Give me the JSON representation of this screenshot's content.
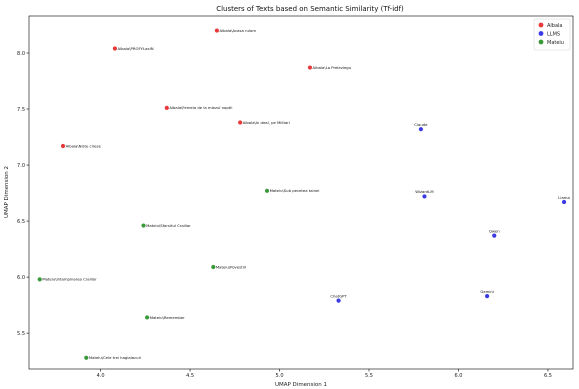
{
  "chart_data": {
    "type": "scatter",
    "title": "Clusters of Texts based on Semantic Similarity (Tf-idf)",
    "xlabel": "UMAP Dimension 1",
    "ylabel": "UMAP Dimension 2",
    "xlim": [
      3.6,
      6.64
    ],
    "ylim": [
      5.18,
      8.33
    ],
    "xticks": [
      "4.0",
      "4.5",
      "5.0",
      "5.5",
      "6.0",
      "6.5"
    ],
    "yticks": [
      "5.5",
      "6.0",
      "6.5",
      "7.0",
      "7.5",
      "8.0"
    ],
    "grid": false,
    "legend_position": "top-right",
    "series": [
      {
        "name": "Albala",
        "color": "#e8393b",
        "points": [
          {
            "x": 4.65,
            "y": 8.2,
            "label": "Albala\\Acasa rulom"
          },
          {
            "x": 4.08,
            "y": 8.04,
            "label": "Albala\\PROFYLaxiN"
          },
          {
            "x": 5.17,
            "y": 7.87,
            "label": "Albala\\La Prelevlegu"
          },
          {
            "x": 4.37,
            "y": 7.51,
            "label": "Albala\\Femeia de la miezul noptii"
          },
          {
            "x": 4.78,
            "y": 7.38,
            "label": "Albala\\In deal, pe Militari"
          },
          {
            "x": 3.79,
            "y": 7.17,
            "label": "Albala\\Niste cirese"
          }
        ]
      },
      {
        "name": "LLMS",
        "color": "#3a3ae6",
        "points": [
          {
            "x": 5.79,
            "y": 7.32,
            "label": "Claude"
          },
          {
            "x": 5.81,
            "y": 6.72,
            "label": "WizardLM"
          },
          {
            "x": 6.59,
            "y": 6.67,
            "label": "Llama"
          },
          {
            "x": 6.2,
            "y": 6.37,
            "label": "Qwen"
          },
          {
            "x": 6.16,
            "y": 5.83,
            "label": "Gemini"
          },
          {
            "x": 5.33,
            "y": 5.79,
            "label": "ChatGPT"
          }
        ]
      },
      {
        "name": "Mateiu",
        "color": "#3a9a3a",
        "points": [
          {
            "x": 4.93,
            "y": 6.77,
            "label": "Mateiu\\Sub pecetea tainei"
          },
          {
            "x": 4.24,
            "y": 6.46,
            "label": "Mateiu\\Sfarsitul Craiilor"
          },
          {
            "x": 4.63,
            "y": 6.09,
            "label": "Mateiu\\Povestiri"
          },
          {
            "x": 3.66,
            "y": 5.98,
            "label": "Mateiu\\Intampinarea Craiilor"
          },
          {
            "x": 4.26,
            "y": 5.64,
            "label": "Mateiu\\Remember"
          },
          {
            "x": 3.92,
            "y": 5.28,
            "label": "Mateiu\\Cele trei hagialacuri"
          }
        ]
      }
    ]
  }
}
